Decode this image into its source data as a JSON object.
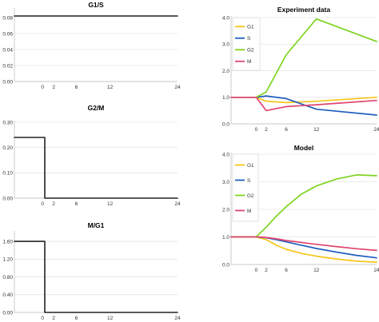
{
  "chart_data": [
    {
      "type": "line",
      "title": "G1/S",
      "x": [
        -5,
        0,
        24
      ],
      "xticks": [
        0,
        2,
        6,
        12,
        24
      ],
      "yticks": [
        "0.00",
        "0.02",
        "0.04",
        "0.06",
        "0.08"
      ],
      "ylim": [
        0,
        0.09
      ],
      "grid": true,
      "series": [
        {
          "color": "#222222",
          "points": [
            [
              -5,
              0.082
            ],
            [
              24,
              0.082
            ]
          ]
        }
      ]
    },
    {
      "type": "line",
      "title": "G2/M",
      "x": [
        -5,
        0,
        24
      ],
      "xticks": [
        0,
        2,
        6,
        12,
        24
      ],
      "yticks": [
        "0.00",
        "0.10",
        "0.20",
        "0.30"
      ],
      "ylim": [
        0,
        0.3
      ],
      "grid": true,
      "series": [
        {
          "color": "#222222",
          "points": [
            [
              -5,
              0.24
            ],
            [
              0.4,
              0.24
            ],
            [
              0.4,
              0
            ],
            [
              24,
              0
            ]
          ]
        }
      ]
    },
    {
      "type": "line",
      "title": "M/G1",
      "x": [
        -5,
        0,
        24
      ],
      "xticks": [
        0,
        2,
        6,
        12,
        24
      ],
      "yticks": [
        "0.00",
        "0.40",
        "0.80",
        "1.20",
        "1.60"
      ],
      "ylim": [
        0,
        1.8
      ],
      "grid": true,
      "series": [
        {
          "color": "#222222",
          "points": [
            [
              -5,
              1.6
            ],
            [
              0.4,
              1.6
            ],
            [
              0.4,
              0
            ],
            [
              24,
              0
            ]
          ]
        }
      ]
    },
    {
      "type": "line",
      "title": "Experiment data",
      "x": [
        -5,
        0,
        24
      ],
      "xticks": [
        0,
        2,
        6,
        12,
        24
      ],
      "yticks": [
        "0.0",
        "1.0",
        "2.0",
        "3.0",
        "4.0"
      ],
      "ylim": [
        0,
        4
      ],
      "grid": true,
      "legend": "top-left",
      "series": [
        {
          "name": "G1",
          "color": "#f5c518",
          "points": [
            [
              -5,
              1.0
            ],
            [
              0,
              1.0
            ],
            [
              2,
              0.85
            ],
            [
              6,
              0.8
            ],
            [
              12,
              0.85
            ],
            [
              24,
              1.0
            ]
          ]
        },
        {
          "name": "S",
          "color": "#1f5fbf",
          "points": [
            [
              -5,
              1.0
            ],
            [
              0,
              1.0
            ],
            [
              2,
              1.05
            ],
            [
              6,
              0.95
            ],
            [
              12,
              0.55
            ],
            [
              24,
              0.33
            ]
          ]
        },
        {
          "name": "G2",
          "color": "#7ed321",
          "points": [
            [
              -5,
              1.0
            ],
            [
              0,
              1.0
            ],
            [
              2,
              1.2
            ],
            [
              6,
              2.6
            ],
            [
              12,
              3.95
            ],
            [
              24,
              3.1
            ]
          ]
        },
        {
          "name": "M",
          "color": "#e0456f",
          "points": [
            [
              -5,
              1.0
            ],
            [
              0,
              1.0
            ],
            [
              2,
              0.5
            ],
            [
              6,
              0.65
            ],
            [
              12,
              0.72
            ],
            [
              24,
              0.88
            ]
          ]
        }
      ]
    },
    {
      "type": "line",
      "title": "Model",
      "x": [
        -5,
        0,
        24
      ],
      "xticks": [
        0,
        2,
        6,
        12,
        24
      ],
      "yticks": [
        "0.0",
        "1.0",
        "2.0",
        "3.0",
        "4.0"
      ],
      "ylim": [
        0,
        4
      ],
      "grid": true,
      "legend": "top-left",
      "series": [
        {
          "name": "G1",
          "color": "#f5c518",
          "points": [
            [
              -5,
              1.0
            ],
            [
              0,
              1.0
            ],
            [
              2,
              0.9
            ],
            [
              4,
              0.7
            ],
            [
              6,
              0.55
            ],
            [
              9,
              0.4
            ],
            [
              12,
              0.3
            ],
            [
              16,
              0.2
            ],
            [
              20,
              0.12
            ],
            [
              24,
              0.08
            ]
          ]
        },
        {
          "name": "S",
          "color": "#1f5fbf",
          "points": [
            [
              -5,
              1.0
            ],
            [
              0,
              1.0
            ],
            [
              2,
              0.97
            ],
            [
              4,
              0.9
            ],
            [
              6,
              0.82
            ],
            [
              9,
              0.7
            ],
            [
              12,
              0.58
            ],
            [
              16,
              0.45
            ],
            [
              20,
              0.33
            ],
            [
              24,
              0.24
            ]
          ]
        },
        {
          "name": "G2",
          "color": "#7ed321",
          "points": [
            [
              -5,
              1.0
            ],
            [
              0,
              1.0
            ],
            [
              2,
              1.35
            ],
            [
              4,
              1.75
            ],
            [
              6,
              2.1
            ],
            [
              9,
              2.55
            ],
            [
              12,
              2.85
            ],
            [
              16,
              3.1
            ],
            [
              20,
              3.25
            ],
            [
              24,
              3.22
            ]
          ]
        },
        {
          "name": "M",
          "color": "#e0456f",
          "points": [
            [
              -5,
              1.0
            ],
            [
              0,
              1.0
            ],
            [
              2,
              0.98
            ],
            [
              4,
              0.93
            ],
            [
              6,
              0.87
            ],
            [
              9,
              0.8
            ],
            [
              12,
              0.73
            ],
            [
              16,
              0.65
            ],
            [
              20,
              0.57
            ],
            [
              24,
              0.51
            ]
          ]
        }
      ]
    }
  ]
}
